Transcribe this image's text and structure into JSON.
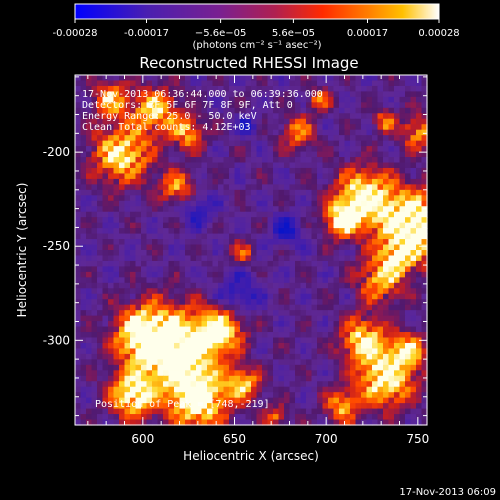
{
  "colorbar": {
    "tick_labels": [
      "-0.00028",
      "-0.00017",
      "−5.6e−05",
      "5.6e−05",
      "0.00017",
      "0.00028"
    ],
    "tick_values": [
      -0.00028,
      -0.00017,
      -5.6e-05,
      5.6e-05,
      0.00017,
      0.00028
    ],
    "units": "(photons cm⁻² s⁻¹ asec⁻²)"
  },
  "plot": {
    "title": "Reconstructed RHESSI Image",
    "xlabel": "Heliocentric X (arcsec)",
    "ylabel": "Heliocentric Y (arcsec)",
    "x_ticks": [
      "600",
      "650",
      "700",
      "750"
    ],
    "x_tick_values": [
      600,
      650,
      700,
      750
    ],
    "y_ticks": [
      "-200",
      "-250",
      "-300"
    ],
    "y_tick_values": [
      -200,
      -250,
      -300
    ],
    "xlim": [
      563,
      755
    ],
    "ylim": [
      -345,
      -159
    ]
  },
  "annotations": {
    "time_range": "17-Nov-2013 06:36:44.000 to 06:39:36.000",
    "detectors": "Detectors: 3F 5F 6F 7F 8F 9F, Att 0",
    "energy": "Energy Range: 25.0 - 50.0 keV",
    "clean": "Clean    Total counts: 4.12E+03",
    "peak": "Position of Peak = [748,-219]"
  },
  "footer": {
    "timestamp": "17-Nov-2013 06:09"
  },
  "colors": {
    "background": "#000000",
    "foreground": "#ffffff",
    "colormap": [
      "#0000ff",
      "#6a1f9a",
      "#8a2aa0",
      "#c0303a",
      "#ff4500",
      "#ff8c00",
      "#ffd000",
      "#ffffff"
    ]
  },
  "chart_data": {
    "type": "heatmap",
    "title": "Reconstructed RHESSI Image",
    "xlabel": "Heliocentric X (arcsec)",
    "ylabel": "Heliocentric Y (arcsec)",
    "xlim": [
      563,
      755
    ],
    "ylim": [
      -345,
      -159
    ],
    "colorbar_range": [
      -0.00028,
      0.00028
    ],
    "peak_position": [
      748,
      -219
    ]
  }
}
